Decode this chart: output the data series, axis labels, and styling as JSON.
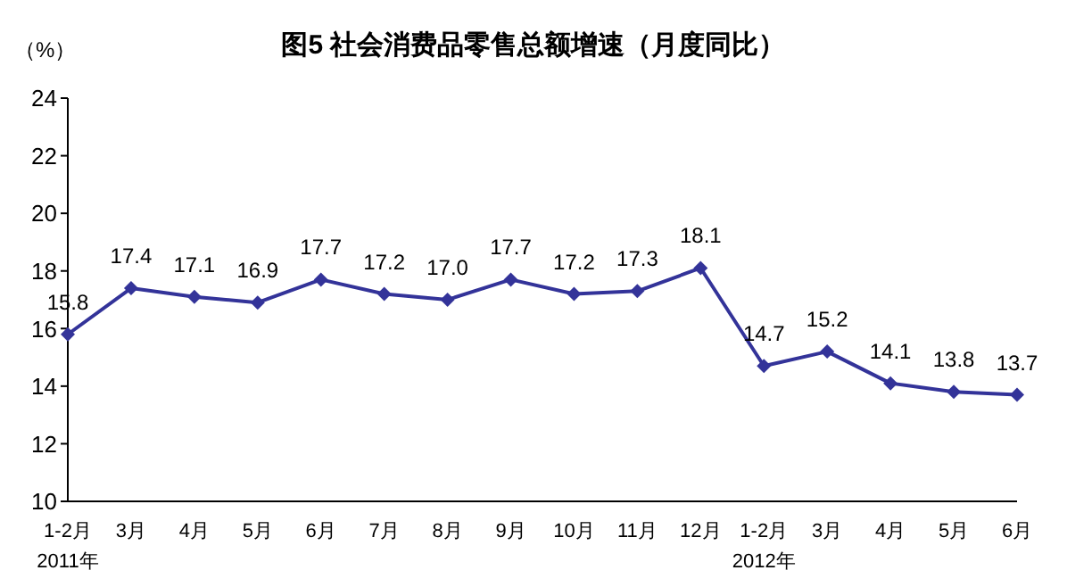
{
  "chart_data": {
    "type": "line",
    "title": "图5  社会消费品零售总额增速（月度同比）",
    "ylabel": "（%）",
    "categories": [
      "1-2月\n2011年",
      "3月",
      "4月",
      "5月",
      "6月",
      "7月",
      "8月",
      "9月",
      "10月",
      "11月",
      "12月",
      "1-2月\n2012年",
      "3月",
      "4月",
      "5月",
      "6月"
    ],
    "series": [
      {
        "color": "#333399",
        "values": [
          15.8,
          17.4,
          17.1,
          16.9,
          17.7,
          17.2,
          17.0,
          17.7,
          17.2,
          17.3,
          18.1,
          14.7,
          15.2,
          14.1,
          13.8,
          13.7
        ],
        "value_labels": [
          "15.8",
          "17.4",
          "17.1",
          "16.9",
          "17.7",
          "17.2",
          "17.0",
          "17.7",
          "17.2",
          "17.3",
          "18.1",
          "14.7",
          "15.2",
          "14.1",
          "13.8",
          "13.7"
        ]
      }
    ],
    "ylim": [
      10,
      24
    ],
    "yticks": [
      10,
      12,
      14,
      16,
      18,
      20,
      22,
      24
    ],
    "marker": "diamond",
    "line_style": "solid"
  }
}
